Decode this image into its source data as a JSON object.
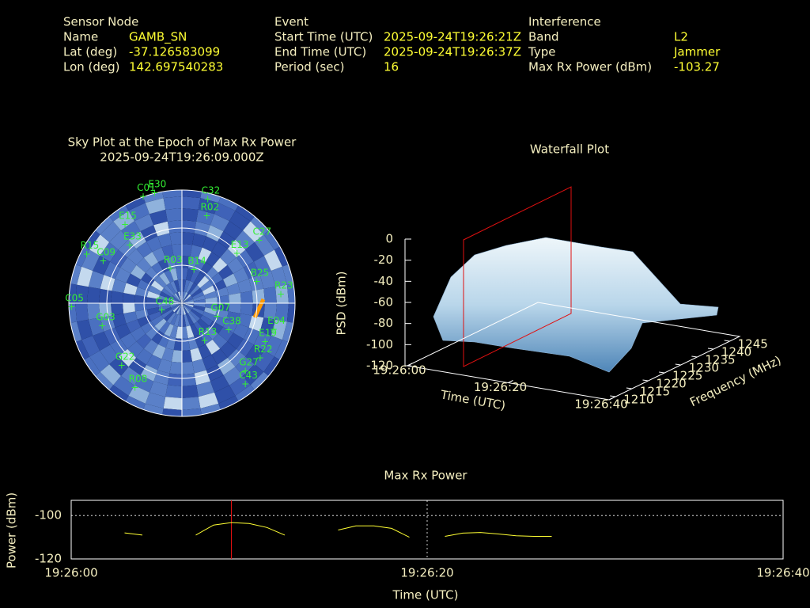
{
  "header": {
    "sections": [
      {
        "title": "Sensor Node",
        "rows": [
          {
            "label": "Name",
            "value": "GAMB_SN"
          },
          {
            "label": "Lat (deg)",
            "value": "-37.126583099"
          },
          {
            "label": "Lon (deg)",
            "value": "142.697540283"
          }
        ]
      },
      {
        "title": "Event",
        "rows": [
          {
            "label": "Start Time (UTC)",
            "value": "2025-09-24T19:26:21Z"
          },
          {
            "label": "End Time (UTC)",
            "value": "2025-09-24T19:26:37Z"
          },
          {
            "label": "Period (sec)",
            "value": "16"
          }
        ]
      },
      {
        "title": "Interference",
        "rows": [
          {
            "label": "Band",
            "value": "L2"
          },
          {
            "label": "Type",
            "value": "Jammer"
          },
          {
            "label": "Max Rx Power (dBm)",
            "value": "-103.27"
          }
        ]
      }
    ]
  },
  "chart_data": [
    {
      "type": "skyplot",
      "title": "Sky Plot at the Epoch of Max Rx Power",
      "subtitle": "2025-09-24T19:26:09.000Z",
      "color": "#33ee33",
      "satellites": [
        {
          "name": "C32",
          "az": 14,
          "el": 5
        },
        {
          "name": "R02",
          "az": 16,
          "el": 18
        },
        {
          "name": "C27",
          "az": 51,
          "el": 11
        },
        {
          "name": "E13",
          "az": 48,
          "el": 31
        },
        {
          "name": "B25",
          "az": 74,
          "el": 28
        },
        {
          "name": "R23",
          "az": 85,
          "el": 11
        },
        {
          "name": "E04",
          "az": 106,
          "el": 14
        },
        {
          "name": "E19",
          "az": 115,
          "el": 17
        },
        {
          "name": "R22",
          "az": 125,
          "el": 14
        },
        {
          "name": "G27",
          "az": 137,
          "el": 16
        },
        {
          "name": "C43",
          "az": 142,
          "el": 8
        },
        {
          "name": "R13",
          "az": 149,
          "el": 55
        },
        {
          "name": "G07",
          "az": 111,
          "el": 60
        },
        {
          "name": "C38",
          "az": 120,
          "el": 47
        },
        {
          "name": "C48",
          "az": 250,
          "el": 73
        },
        {
          "name": "R08",
          "az": 209,
          "el": 13
        },
        {
          "name": "G22",
          "az": 224,
          "el": 21
        },
        {
          "name": "G03",
          "az": 254,
          "el": 24
        },
        {
          "name": "C05",
          "az": 268,
          "el": 2
        },
        {
          "name": "R15",
          "az": 297,
          "el": 5
        },
        {
          "name": "C09",
          "az": 298,
          "el": 19
        },
        {
          "name": "E15",
          "az": 324,
          "el": 13
        },
        {
          "name": "E33",
          "az": 318,
          "el": 28
        },
        {
          "name": "C01",
          "az": 340,
          "el": 0
        },
        {
          "name": "E30",
          "az": 346,
          "el": 0
        },
        {
          "name": "B14",
          "az": 20,
          "el": 62
        },
        {
          "name": "R03",
          "az": 341,
          "el": 61
        }
      ]
    },
    {
      "type": "waterfall",
      "title": "Waterfall Plot",
      "x_label": "Time (UTC)",
      "y_label": "Frequency (MHz)",
      "z_label": "PSD (dBm)",
      "xlim": [
        "19:26:00",
        "19:26:40"
      ],
      "xticks": [
        "19:26:00",
        "19:26:20",
        "19:26:40"
      ],
      "ylim": [
        1208,
        1248
      ],
      "yticks": [
        1210,
        1215,
        1220,
        1225,
        1230,
        1235,
        1240,
        1245
      ],
      "zlim": [
        -120,
        0
      ],
      "zticks": [
        -120,
        -100,
        -80,
        -60,
        -40,
        -20,
        0
      ]
    },
    {
      "type": "line",
      "title": "Max Rx Power",
      "x_label": "Time (UTC)",
      "y_label": "Power (dBm)",
      "xlim": [
        "19:26:00",
        "19:26:40"
      ],
      "xticks": [
        "19:26:00",
        "19:26:20",
        "19:26:40"
      ],
      "ylim": [
        -120,
        -93
      ],
      "yticks": [
        -120,
        -100
      ],
      "grid": true,
      "vline_x": "19:26:09",
      "x": [
        "19:26:03",
        "19:26:04",
        "19:26:05",
        "19:26:07",
        "19:26:08",
        "19:26:09",
        "19:26:10",
        "19:26:11",
        "19:26:12",
        "19:26:13",
        "19:26:15",
        "19:26:16",
        "19:26:17",
        "19:26:18",
        "19:26:19",
        "19:26:20",
        "19:26:21",
        "19:26:22",
        "19:26:23",
        "19:26:24",
        "19:26:25",
        "19:26:26",
        "19:26:27"
      ],
      "series": [
        {
          "name": "Max Rx Power",
          "color": "#ffff33",
          "values": [
            -108,
            -109,
            null,
            -109,
            -104.4,
            -103.27,
            -103.7,
            -105.5,
            -109,
            null,
            -106.7,
            -104.8,
            -104.8,
            -105.9,
            -110,
            null,
            -109.6,
            -108.1,
            -107.8,
            -108.5,
            -109.3,
            -109.6,
            -109.6
          ]
        }
      ]
    }
  ]
}
